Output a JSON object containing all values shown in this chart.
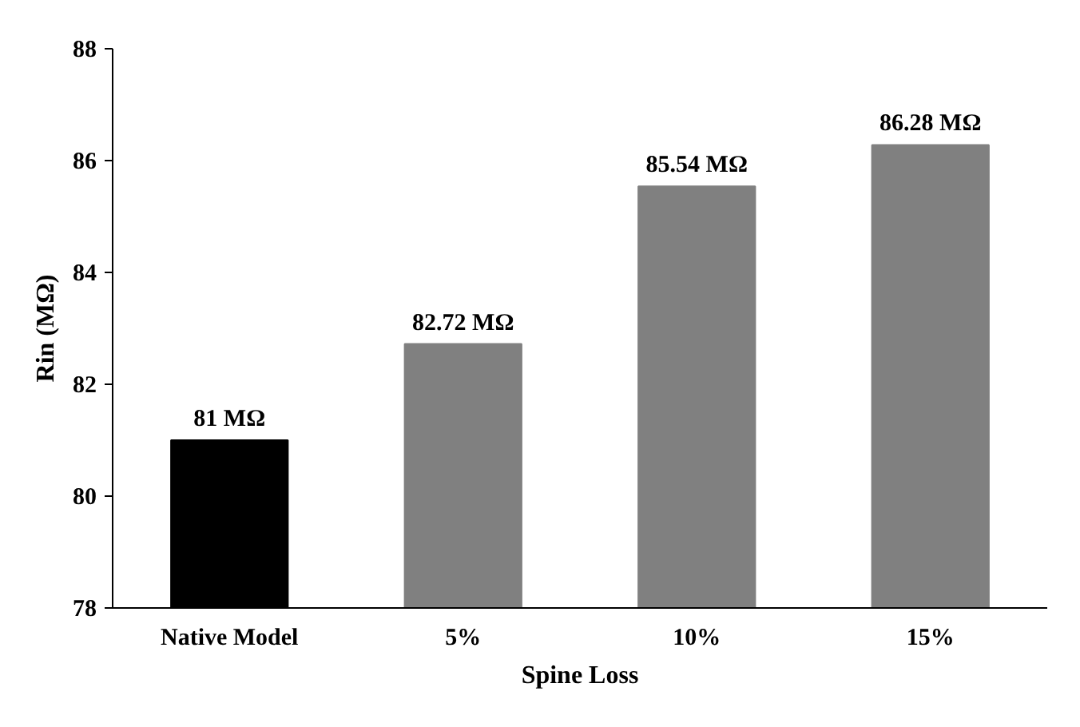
{
  "chart_data": {
    "type": "bar",
    "xlabel": "Spine Loss",
    "ylabel": "Rin (MΩ)",
    "categories": [
      "Native Model",
      "5%",
      "10%",
      "15%"
    ],
    "values": [
      81,
      82.72,
      85.54,
      86.28
    ],
    "colors": [
      "#000000",
      "#808080",
      "#808080",
      "#808080"
    ],
    "value_labels": [
      "81 MΩ",
      "82.72 MΩ",
      "85.54 MΩ",
      "86.28 MΩ"
    ],
    "ylim": [
      78,
      88
    ],
    "yticks": [
      78,
      80,
      82,
      84,
      86,
      88
    ],
    "grid": false
  }
}
